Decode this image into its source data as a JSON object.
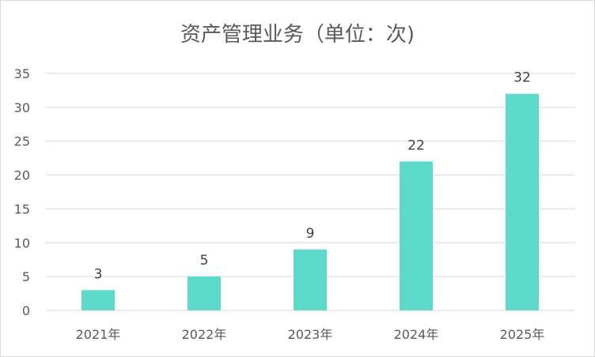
{
  "chart_data": {
    "type": "bar",
    "title": "资产管理业务（单位：次)",
    "categories": [
      "2021年",
      "2022年",
      "2023年",
      "2024年",
      "2025年"
    ],
    "values": [
      3,
      5,
      9,
      22,
      32
    ],
    "ylim": [
      0,
      35
    ],
    "yticks": [
      0,
      5,
      10,
      15,
      20,
      25,
      30,
      35
    ],
    "xlabel": "",
    "ylabel": "",
    "grid": true,
    "legend": "none",
    "bar_color": "#5DD9CC",
    "grid_color": "#d9d9d9"
  }
}
